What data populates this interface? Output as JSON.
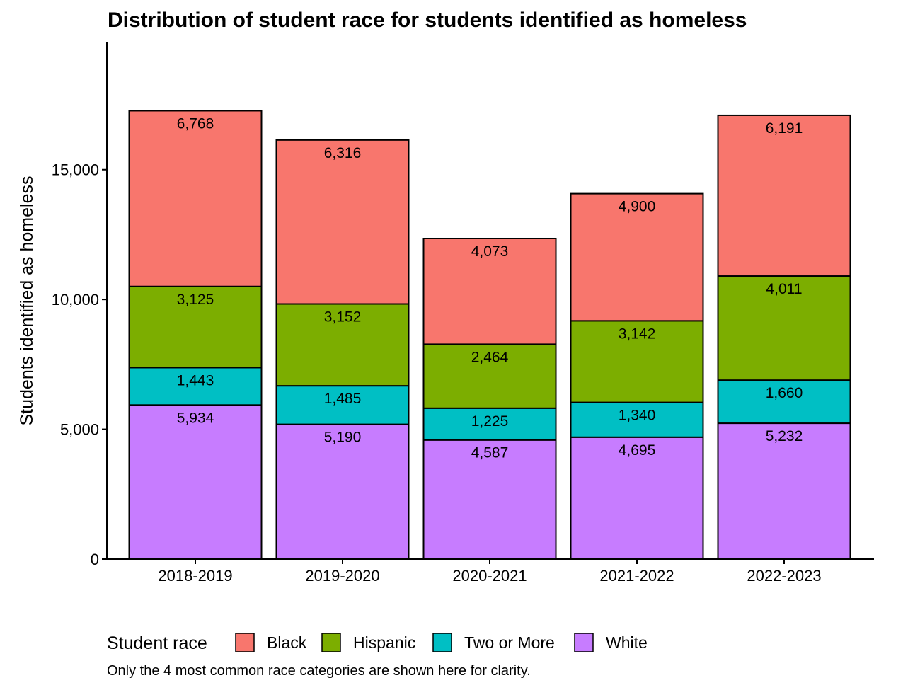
{
  "chart_data": {
    "type": "bar",
    "stacked": true,
    "title": "Distribution of student race for students identified as homeless",
    "xlabel": "",
    "ylabel": "Students identified as homeless",
    "categories": [
      "2018-2019",
      "2019-2020",
      "2020-2021",
      "2021-2022",
      "2022-2023"
    ],
    "series": [
      {
        "name": "White",
        "color": "#C77CFF",
        "values": [
          5934,
          5190,
          4587,
          4695,
          5232
        ],
        "labels": [
          "5,934",
          "5,190",
          "4,587",
          "4,695",
          "5,232"
        ]
      },
      {
        "name": "Two or More",
        "color": "#00BFC4",
        "values": [
          1443,
          1485,
          1225,
          1340,
          1660
        ],
        "labels": [
          "1,443",
          "1,485",
          "1,225",
          "1,340",
          "1,660"
        ]
      },
      {
        "name": "Hispanic",
        "color": "#7CAE00",
        "values": [
          3125,
          3152,
          2464,
          3142,
          4011
        ],
        "labels": [
          "3,125",
          "3,152",
          "2,464",
          "3,142",
          "4,011"
        ]
      },
      {
        "name": "Black",
        "color": "#F8766D",
        "values": [
          6768,
          6316,
          4073,
          4900,
          6191
        ],
        "labels": [
          "6,768",
          "6,316",
          "4,073",
          "4,900",
          "6,191"
        ]
      }
    ],
    "yticks": [
      0,
      5000,
      10000,
      15000
    ],
    "ytick_labels": [
      "0",
      "5,000",
      "10,000",
      "15,000"
    ],
    "ylim": [
      0,
      19900
    ],
    "grid": false,
    "legend": {
      "title": "Student race",
      "position": "bottom",
      "order": [
        "Black",
        "Hispanic",
        "Two or More",
        "White"
      ]
    },
    "caption": "Only the 4 most common race categories are shown here for clarity."
  }
}
